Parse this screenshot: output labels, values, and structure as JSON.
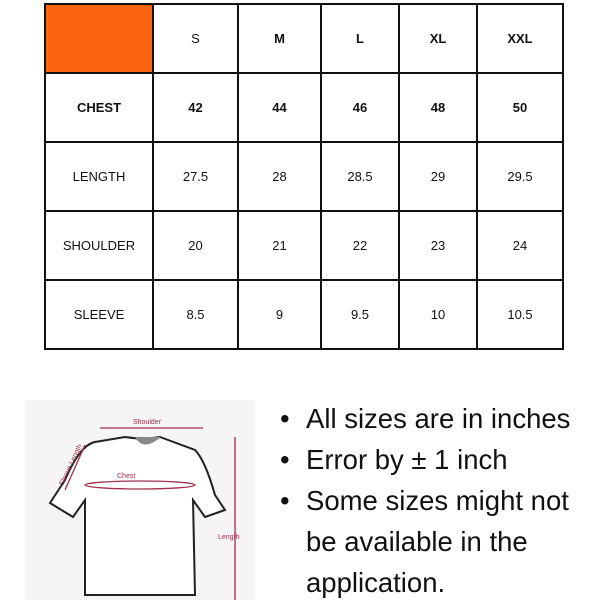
{
  "table": {
    "sizes": [
      "S",
      "M",
      "L",
      "XL",
      "XXL"
    ],
    "rows": [
      {
        "label": "CHEST",
        "values": [
          "42",
          "44",
          "46",
          "48",
          "50"
        ]
      },
      {
        "label": "LENGTH",
        "values": [
          "27.5",
          "28",
          "28.5",
          "29",
          "29.5"
        ]
      },
      {
        "label": "SHOULDER",
        "values": [
          "20",
          "21",
          "22",
          "23",
          "24"
        ]
      },
      {
        "label": "SLEEVE",
        "values": [
          "8.5",
          "9",
          "9.5",
          "10",
          "10.5"
        ]
      }
    ],
    "corner_color": "#fb6410"
  },
  "diagram": {
    "shoulder": "Shoulder",
    "sleeve": "Sleeve Length",
    "chest": "Chest",
    "length": "Length",
    "accent_color": "#a0304a"
  },
  "notes": {
    "bullet": "•",
    "items": [
      "All sizes are in inches",
      "Error by ± 1 inch",
      "Some sizes might not be available in the application."
    ]
  }
}
